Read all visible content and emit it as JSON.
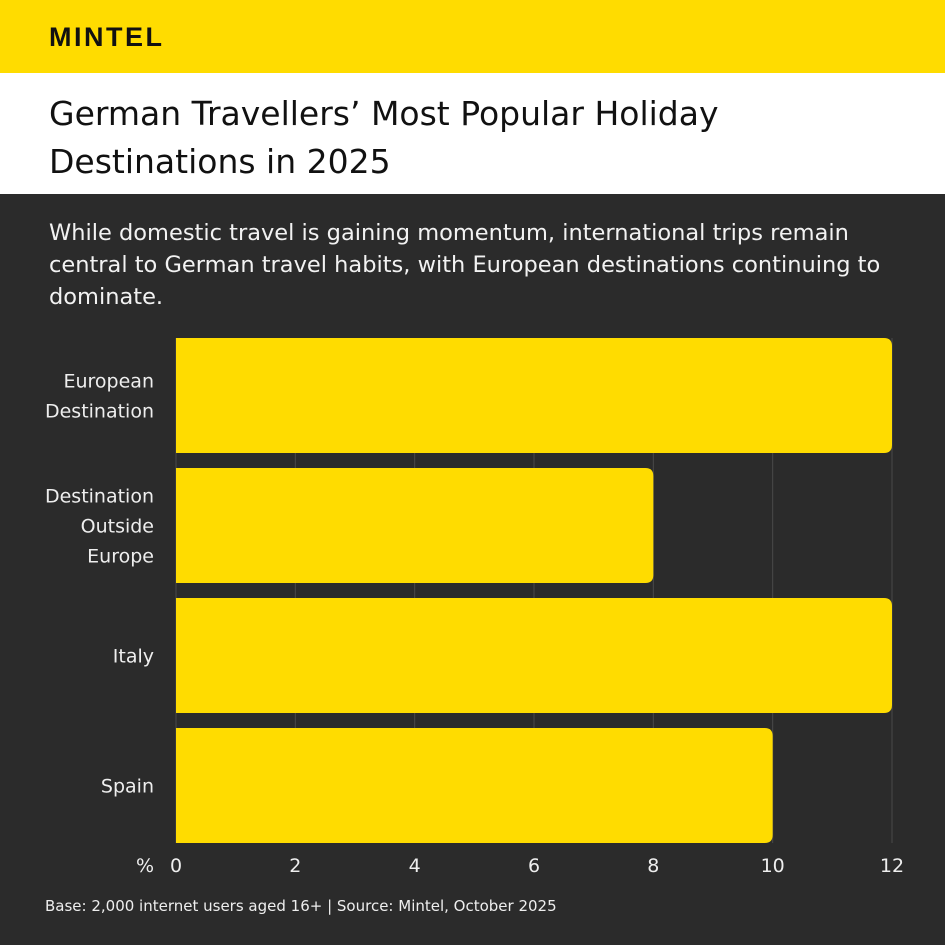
{
  "brand": {
    "logo": "MINTEL",
    "accent": "#ffdc00"
  },
  "header": {
    "title": "German Travellers’ Most Popular Holiday Destinations in 2025"
  },
  "subtitle": "While domestic travel is gaining momentum, international trips remain central to German travel habits, with European destinations continuing to dominate.",
  "footer": "Base: 2,000 internet users aged 16+ | Source: Mintel, October 2025",
  "chart_data": {
    "type": "bar",
    "orientation": "horizontal",
    "title": "German Travellers’ Most Popular Holiday Destinations in 2025",
    "categories": [
      [
        "European",
        "Destination"
      ],
      [
        "Destination",
        "Outside",
        "Europe"
      ],
      [
        "Italy"
      ],
      [
        "Spain"
      ]
    ],
    "category_names": [
      "European Destination",
      "Destination Outside Europe",
      "Italy",
      "Spain"
    ],
    "values": [
      12,
      8,
      12,
      10
    ],
    "xlabel": "%",
    "xlim": [
      0,
      12
    ],
    "xticks": [
      0,
      2,
      4,
      6,
      8,
      10,
      12
    ],
    "grid": true,
    "bar_color": "#ffdc00"
  }
}
